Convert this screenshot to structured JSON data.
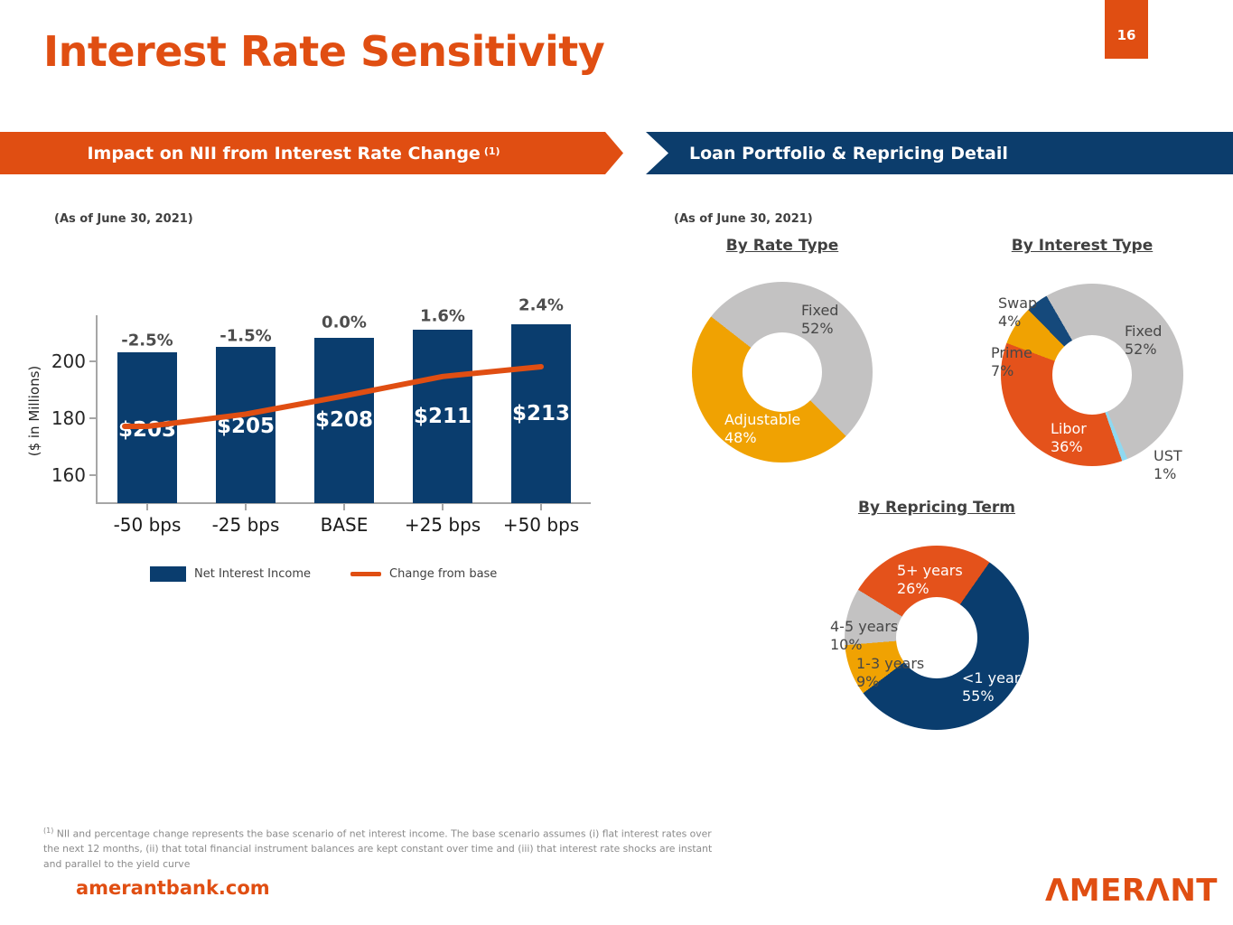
{
  "page": {
    "number": "16"
  },
  "title": "Interest Rate Sensitivity",
  "banners": {
    "left": {
      "text": "Impact on NII from Interest Rate Change",
      "footnote_ref": "(1)"
    },
    "right": {
      "text": "Loan Portfolio & Repricing Detail"
    }
  },
  "left_section": {
    "as_of": "(As of June 30, 2021)"
  },
  "right_section": {
    "as_of": "(As of June 30, 2021)"
  },
  "chart_data": [
    {
      "type": "bar",
      "title": "Impact on NII from Interest Rate Change",
      "categories": [
        "-50 bps",
        "-25 bps",
        "BASE",
        "+25 bps",
        "+50 bps"
      ],
      "series": [
        {
          "name": "Net Interest Income",
          "kind": "bar",
          "color": "#0A3D6E",
          "values": [
            203,
            205,
            208,
            211,
            213
          ],
          "labels": [
            "$203",
            "$205",
            "$208",
            "$211",
            "$213"
          ]
        },
        {
          "name": "Change from base",
          "kind": "line",
          "color": "#E04E12",
          "values": [
            -2.5,
            -1.5,
            0.0,
            1.6,
            2.4
          ],
          "labels": [
            "-2.5%",
            "-1.5%",
            "0.0%",
            "1.6%",
            "2.4%"
          ]
        }
      ],
      "ylabel": "($ in Millions)",
      "yticks": [
        160,
        180,
        200
      ],
      "ylim": [
        150,
        215
      ],
      "grid": false,
      "legend_position": "bottom"
    },
    {
      "type": "pie",
      "title": "By Rate Type",
      "start_angle": 308,
      "slices": [
        {
          "label": "Fixed",
          "pct": 52,
          "pct_text": "52%",
          "color": "#C3C2C2"
        },
        {
          "label": "Adjustable",
          "pct": 48,
          "pct_text": "48%",
          "color": "#F0A202"
        }
      ]
    },
    {
      "type": "pie",
      "title": "By Interest Type",
      "start_angle": 330,
      "slices": [
        {
          "label": "Fixed",
          "pct": 52,
          "pct_text": "52%",
          "color": "#C3C2C2"
        },
        {
          "label": "UST",
          "pct": 1,
          "pct_text": "1%",
          "color": "#8FD9F1"
        },
        {
          "label": "Libor",
          "pct": 36,
          "pct_text": "36%",
          "color": "#E4521B"
        },
        {
          "label": "Prime",
          "pct": 7,
          "pct_text": "7%",
          "color": "#F0A202"
        },
        {
          "label": "Swap",
          "pct": 4,
          "pct_text": "4%",
          "color": "#15497B"
        }
      ]
    },
    {
      "type": "pie",
      "title": "By Repricing Term",
      "start_angle": 35,
      "slices": [
        {
          "label": "<1 year",
          "pct": 55,
          "pct_text": "55%",
          "color": "#0A3D6E"
        },
        {
          "label": "1-3 years",
          "pct": 9,
          "pct_text": "9%",
          "color": "#F0A202"
        },
        {
          "label": "4-5 years",
          "pct": 10,
          "pct_text": "10%",
          "color": "#C3C2C2"
        },
        {
          "label": "5+ years",
          "pct": 26,
          "pct_text": "26%",
          "color": "#E4521B"
        }
      ]
    }
  ],
  "footnote": {
    "ref": "(1)",
    "text": "NII and percentage change represents the base scenario of  net interest income. The base scenario assumes (i) flat interest rates over the next 12 months, (ii) that total financial instrument balances are kept constant over time and (iii) that interest rate shocks are instant and parallel to the yield curve"
  },
  "footer": {
    "website": "amerantbank.com",
    "logo_text": "AMERANT",
    "logo_display": "ΛMERΛNT"
  },
  "colors": {
    "brand_orange": "#E04E12",
    "brand_navy": "#0C3D6C",
    "slice_gray": "#C3C2C2",
    "slice_amber": "#F0A202",
    "slice_orange": "#E4521B",
    "slice_light_blue": "#8FD9F1",
    "slice_swap_navy": "#15497B"
  }
}
